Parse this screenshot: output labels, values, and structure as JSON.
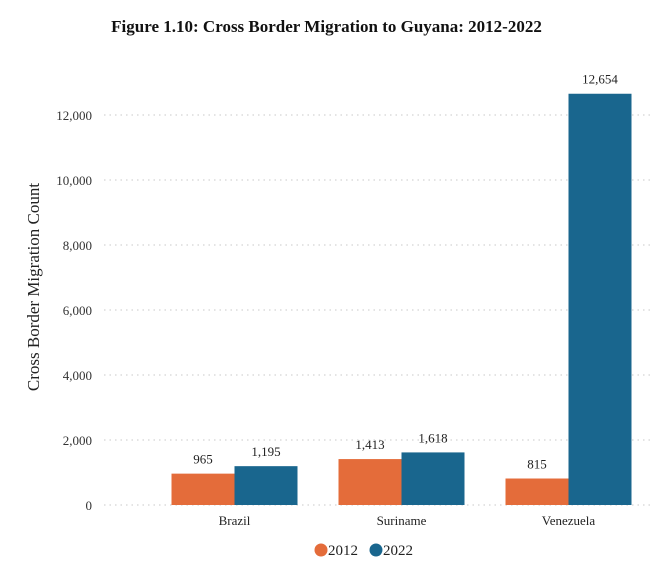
{
  "chart_data": {
    "type": "bar",
    "title": "Figure 1.10: Cross Border Migration to Guyana: 2012-2022",
    "xlabel": "",
    "ylabel": "Cross Border Migration Count",
    "categories": [
      "Brazil",
      "Suriname",
      "Venezuela"
    ],
    "series": [
      {
        "name": "2012",
        "color": "#E46C3A",
        "values": [
          965,
          1413,
          815
        ],
        "labels": [
          "965",
          "1,413",
          "815"
        ]
      },
      {
        "name": "2022",
        "color": "#19668E",
        "values": [
          1195,
          1618,
          12654
        ],
        "labels": [
          "1,195",
          "1,618",
          "12,654"
        ]
      }
    ],
    "ylim": [
      0,
      12000
    ],
    "yticks": [
      0,
      2000,
      4000,
      6000,
      8000,
      10000,
      12000
    ],
    "ytick_labels": [
      "0",
      "2,000",
      "4,000",
      "6,000",
      "8,000",
      "10,000",
      "12,000"
    ],
    "grid": true,
    "legend_position": "bottom-center"
  }
}
